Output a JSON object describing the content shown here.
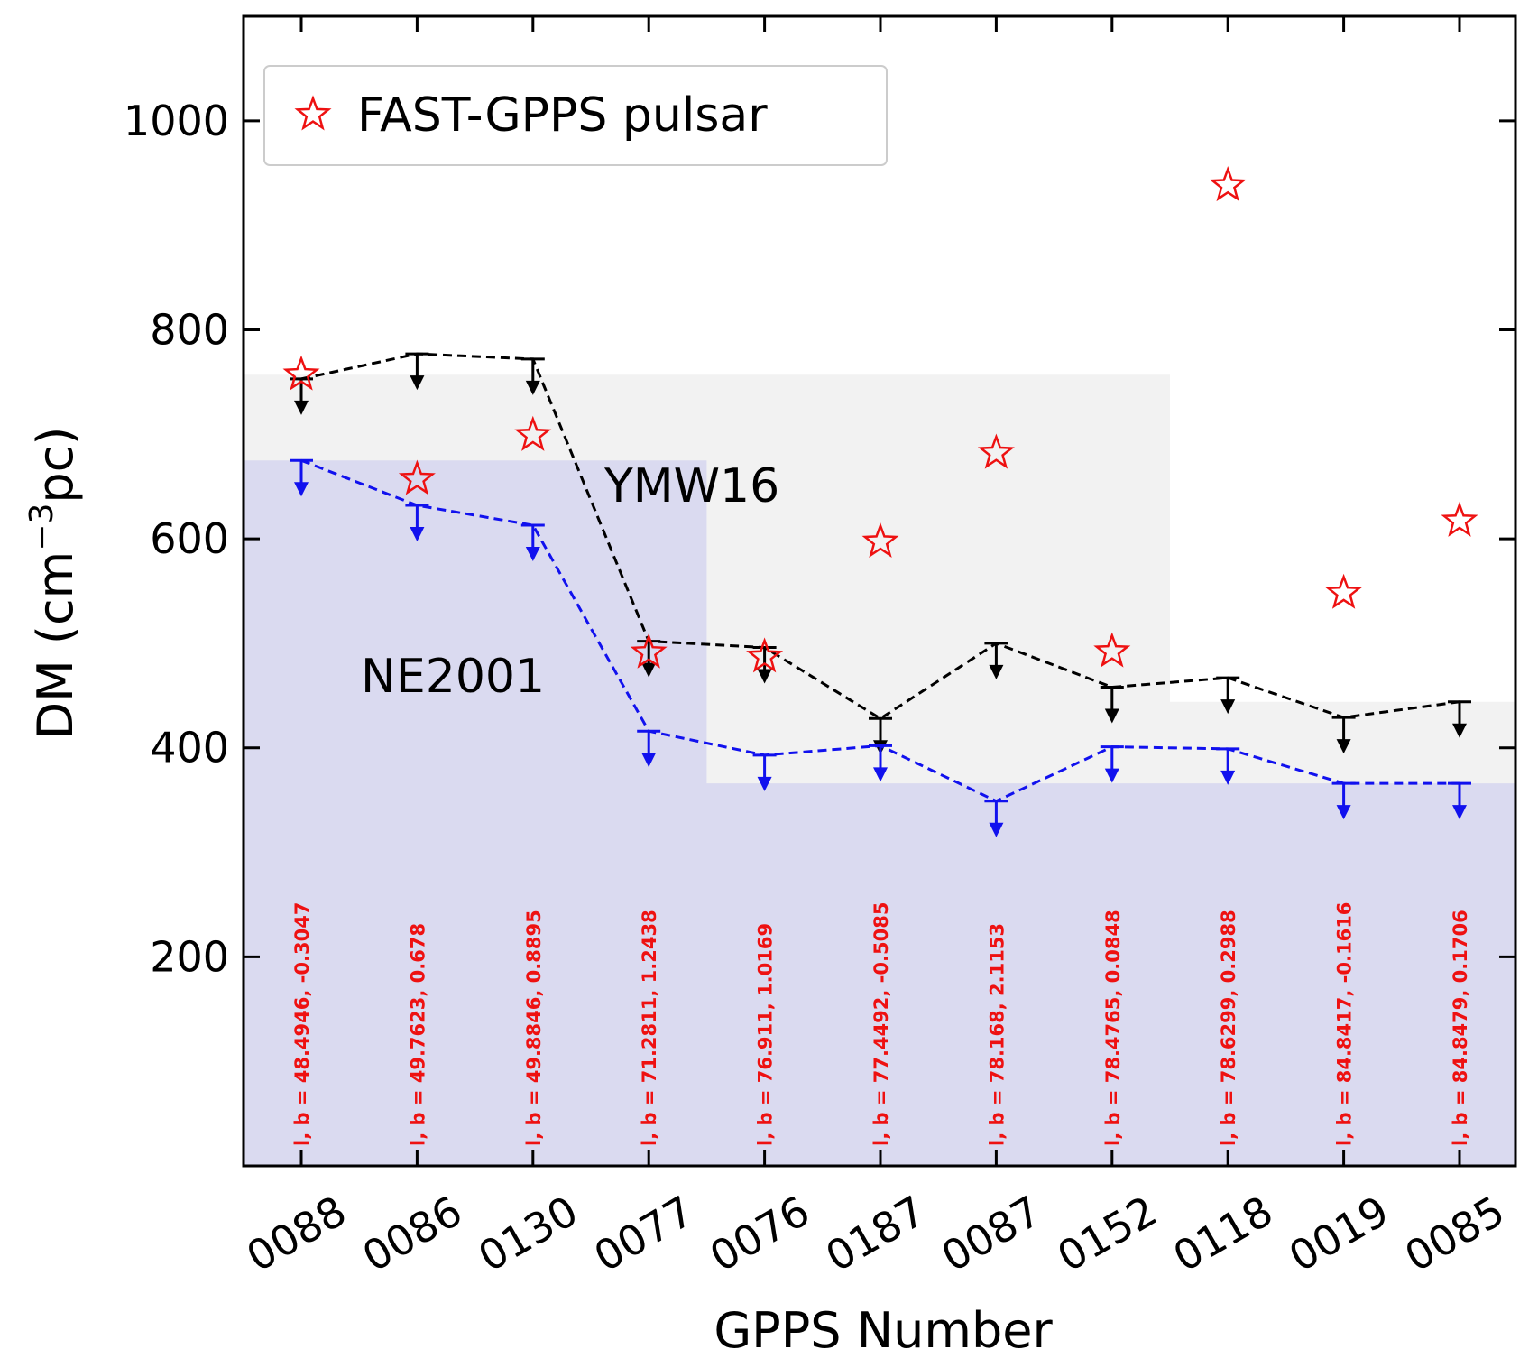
{
  "chart_data": {
    "type": "scatter",
    "title": "",
    "xlabel": "GPPS Number",
    "ylabel_main": "DM (cm",
    "ylabel_sup": "−3",
    "ylabel_end": "pc)",
    "ylim": [
      0,
      1100
    ],
    "yticks": [
      200,
      400,
      600,
      800,
      1000
    ],
    "categories": [
      "0088",
      "0086",
      "0130",
      "0077",
      "0076",
      "0187",
      "0087",
      "0152",
      "0118",
      "0019",
      "0085"
    ],
    "series": [
      {
        "name": "FAST-GPPS pulsar",
        "marker": "star",
        "color": "#ee1111",
        "values": [
          757,
          657,
          699,
          491,
          487,
          597,
          682,
          492,
          938,
          548,
          617
        ]
      },
      {
        "name": "YMW16",
        "type": "upper-limit-line",
        "color": "#000000",
        "values": [
          753,
          777,
          772,
          502,
          496,
          428,
          500,
          458,
          467,
          429,
          444
        ]
      },
      {
        "name": "NE2001",
        "type": "upper-limit-line",
        "color": "#1111ee",
        "values": [
          675,
          632,
          613,
          416,
          393,
          402,
          349,
          401,
          399,
          366,
          366
        ]
      }
    ],
    "shaded_regions": [
      {
        "name": "YMW16 band",
        "color": "#f2f2f2",
        "steps": [
          [
            -0.5,
            757
          ],
          [
            7.5,
            757
          ],
          [
            7.5,
            444
          ],
          [
            10.5,
            444
          ]
        ]
      },
      {
        "name": "NE2001 band",
        "color": "#dadaf0",
        "steps": [
          [
            -0.5,
            675
          ],
          [
            3.5,
            675
          ],
          [
            3.5,
            366
          ],
          [
            10.5,
            366
          ]
        ]
      }
    ],
    "annotations": {
      "ymw16_label": "YMW16",
      "ne2001_label": "NE2001",
      "coordinates": [
        "l, b = 48.4946, -0.3047",
        "l, b = 49.7623, 0.678",
        "l, b = 49.8846, 0.8895",
        "l, b = 71.2811, 1.2438",
        "l, b = 76.911, 1.0169",
        "l, b = 77.4492, -0.5085",
        "l, b = 78.168, 2.1153",
        "l, b = 78.4765, 0.0848",
        "l, b = 78.6299, 0.2988",
        "l, b = 84.8417, -0.1616",
        "l, b = 84.8479, 0.1706"
      ],
      "coord_color": "#ee1111"
    },
    "legend": {
      "label": "FAST-GPPS pulsar",
      "position": "top-left"
    },
    "grid": false
  }
}
